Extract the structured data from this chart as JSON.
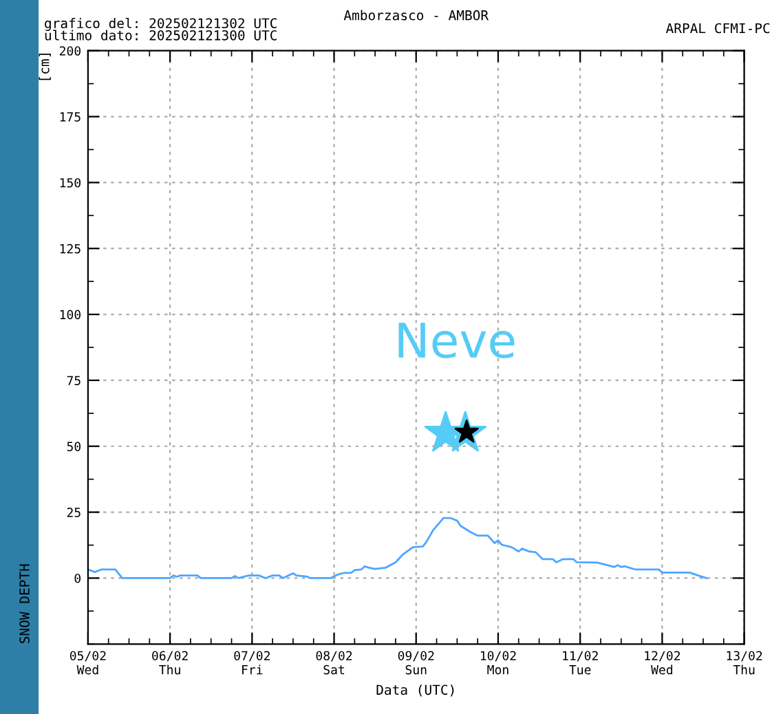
{
  "chart_data": {
    "type": "line",
    "title": "Amborzasco - AMBOR",
    "xlabel": "Data (UTC)",
    "ylabel": "SNOW DEPTH",
    "annotations": [
      "grafico del: 202502121302 UTC\nultimo dato: 202502121300 UTC",
      "ARPAL CFMI-PC",
      "[cm]",
      "Neve"
    ],
    "series": [
      {
        "color": "#4da6ff",
        "x": [
          "2025-02-05T00:00",
          "2025-02-05T02:00",
          "2025-02-05T04:00",
          "2025-02-05T08:00",
          "2025-02-05T10:00",
          "2025-02-06T00:00",
          "2025-02-06T01:00",
          "2025-02-06T02:00",
          "2025-02-06T03:00",
          "2025-02-06T08:00",
          "2025-02-06T09:00",
          "2025-02-06T18:00",
          "2025-02-06T19:00",
          "2025-02-06T20:00",
          "2025-02-06T23:00",
          "2025-02-07T02:00",
          "2025-02-07T04:00",
          "2025-02-07T06:00",
          "2025-02-07T08:00",
          "2025-02-07T09:00",
          "2025-02-07T12:00",
          "2025-02-07T13:00",
          "2025-02-07T16:00",
          "2025-02-07T17:00",
          "2025-02-07T23:00",
          "2025-02-08T01:00",
          "2025-02-08T03:00",
          "2025-02-08T05:00",
          "2025-02-08T06:00",
          "2025-02-08T08:00",
          "2025-02-08T09:00",
          "2025-02-08T10:00",
          "2025-02-08T12:00",
          "2025-02-08T15:00",
          "2025-02-08T18:00",
          "2025-02-08T20:00",
          "2025-02-08T21:00",
          "2025-02-08T23:00",
          "2025-02-09T02:00",
          "2025-02-09T03:00",
          "2025-02-09T05:00",
          "2025-02-09T08:00",
          "2025-02-09T10:00",
          "2025-02-09T12:00",
          "2025-02-09T13:00",
          "2025-02-09T16:00",
          "2025-02-09T18:00",
          "2025-02-09T21:00",
          "2025-02-09T23:00",
          "2025-02-10T00:00",
          "2025-02-10T01:00",
          "2025-02-10T04:00",
          "2025-02-10T06:00",
          "2025-02-10T07:00",
          "2025-02-10T09:00",
          "2025-02-10T11:00",
          "2025-02-10T13:00",
          "2025-02-10T16:00",
          "2025-02-10T17:00",
          "2025-02-10T19:00",
          "2025-02-10T22:00",
          "2025-02-10T23:00",
          "2025-02-11T05:00",
          "2025-02-11T08:00",
          "2025-02-11T10:00",
          "2025-02-11T11:00",
          "2025-02-11T12:00",
          "2025-02-11T13:00",
          "2025-02-11T16:00",
          "2025-02-11T23:00",
          "2025-02-12T00:00",
          "2025-02-12T08:00",
          "2025-02-12T11:00",
          "2025-02-12T13:00"
        ],
        "values": [
          3.3,
          2.3,
          3.3,
          3.3,
          0,
          0,
          1,
          0.5,
          1,
          1,
          0,
          0,
          0.8,
          0,
          1,
          1,
          0,
          1,
          1,
          0,
          1.8,
          1,
          0.6,
          0,
          0,
          1.3,
          2,
          2,
          3,
          3.3,
          4.5,
          4,
          3.5,
          3.9,
          6,
          8.8,
          9.8,
          11.7,
          12,
          13.7,
          18.2,
          22.8,
          22.8,
          21.8,
          19.8,
          17.4,
          16.1,
          16.1,
          13.3,
          14.3,
          12.7,
          11.7,
          10.1,
          11.2,
          10.1,
          9.8,
          7.2,
          7.2,
          6,
          7.2,
          7.2,
          6,
          5.9,
          4.9,
          4.2,
          4.9,
          4.2,
          4.5,
          3.3,
          3.3,
          2.1,
          2.1,
          0.8,
          0
        ]
      }
    ],
    "xlim": [
      "2025-02-05T00:00",
      "2025-02-13T00:00"
    ],
    "xticks": [
      {
        "value": "2025-02-05T00:00",
        "label": "05/02\nWed"
      },
      {
        "value": "2025-02-06T00:00",
        "label": "06/02\nThu"
      },
      {
        "value": "2025-02-07T00:00",
        "label": "07/02\nFri"
      },
      {
        "value": "2025-02-08T00:00",
        "label": "08/02\nSat"
      },
      {
        "value": "2025-02-09T00:00",
        "label": "09/02\nSun"
      },
      {
        "value": "2025-02-10T00:00",
        "label": "10/02\nMon"
      },
      {
        "value": "2025-02-11T00:00",
        "label": "11/02\nTue"
      },
      {
        "value": "2025-02-12T00:00",
        "label": "12/02\nWed"
      },
      {
        "value": "2025-02-13T00:00",
        "label": "13/02\nThu"
      }
    ],
    "ylim": [
      -25,
      200
    ],
    "yticks": [
      0,
      25,
      50,
      75,
      100,
      125,
      150,
      175,
      200
    ],
    "grid": true,
    "legend": false,
    "marker": "none",
    "line_style": "solid"
  }
}
